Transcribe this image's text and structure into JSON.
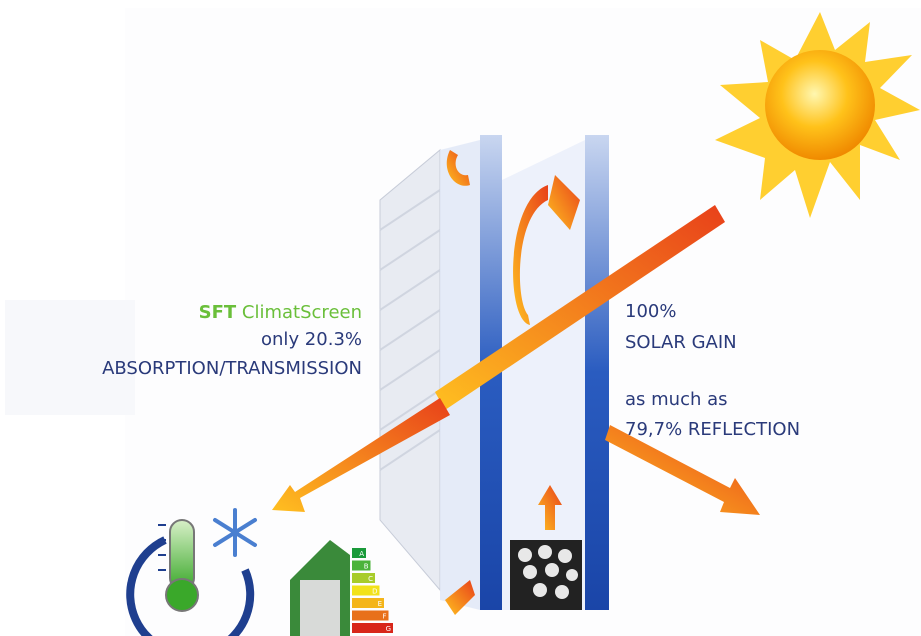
{
  "left_text": {
    "brand": "SFT",
    "product": "ClimatScreen",
    "line2": "only 20.3%",
    "line3": "ABSORPTION/TRANSMISSION"
  },
  "right_text": {
    "line1": "100%",
    "line2": "SOLAR GAIN",
    "line3": "as much as",
    "line4": "79,7% REFLECTION"
  },
  "energy_label": {
    "classes": [
      "A",
      "B",
      "C",
      "D",
      "E",
      "F",
      "G"
    ]
  }
}
